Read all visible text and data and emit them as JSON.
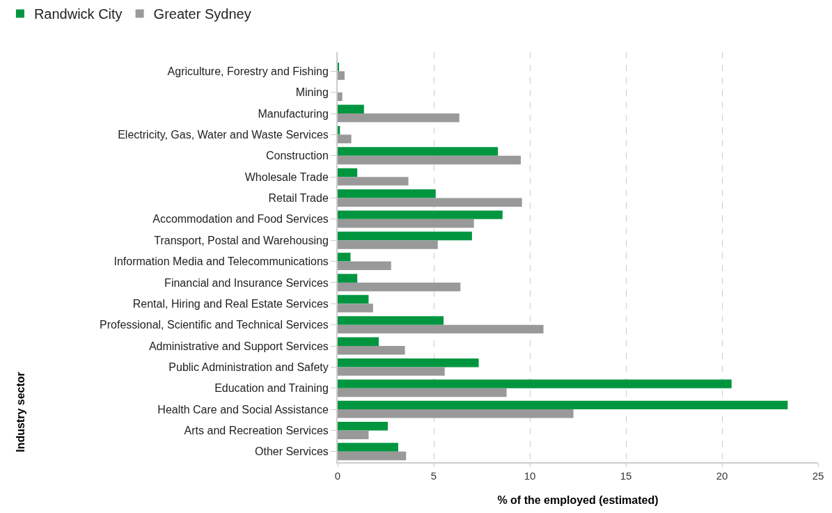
{
  "chart_data": {
    "type": "bar",
    "orientation": "horizontal",
    "xlabel": "% of the employed (estimated)",
    "annotations": [
      "Industry sector"
    ],
    "categories": [
      "Agriculture, Forestry and Fishing",
      "Mining",
      "Manufacturing",
      "Electricity, Gas, Water and Waste Services",
      "Construction",
      "Wholesale Trade",
      "Retail Trade",
      "Accommodation and Food Services",
      "Transport, Postal and Warehousing",
      "Information Media and Telecommunications",
      "Financial and Insurance Services",
      "Rental, Hiring and Real Estate Services",
      "Professional, Scientific and Technical Services",
      "Administrative and Support Services",
      "Public Administration and Safety",
      "Education and Training",
      "Health Care and Social Assistance",
      "Arts and Recreation Services",
      "Other Services"
    ],
    "series": [
      {
        "name": "Randwick City",
        "color": "#009640",
        "values": [
          0.07,
          0,
          1.37,
          0.12,
          8.34,
          1.02,
          5.1,
          8.58,
          6.99,
          0.67,
          1.02,
          1.61,
          5.51,
          2.14,
          7.34,
          20.5,
          23.42,
          2.61,
          3.15
        ]
      },
      {
        "name": "Greater Sydney",
        "color": "#999999",
        "values": [
          0.36,
          0.24,
          6.33,
          0.71,
          9.53,
          3.68,
          9.59,
          7.09,
          5.21,
          2.78,
          6.39,
          1.84,
          10.71,
          3.5,
          5.57,
          8.79,
          12.27,
          1.61,
          3.56
        ]
      }
    ],
    "xlim": [
      0,
      25
    ],
    "xticks": [
      0,
      5,
      10,
      15,
      20,
      25
    ],
    "grid": "x",
    "legend": "top left"
  }
}
